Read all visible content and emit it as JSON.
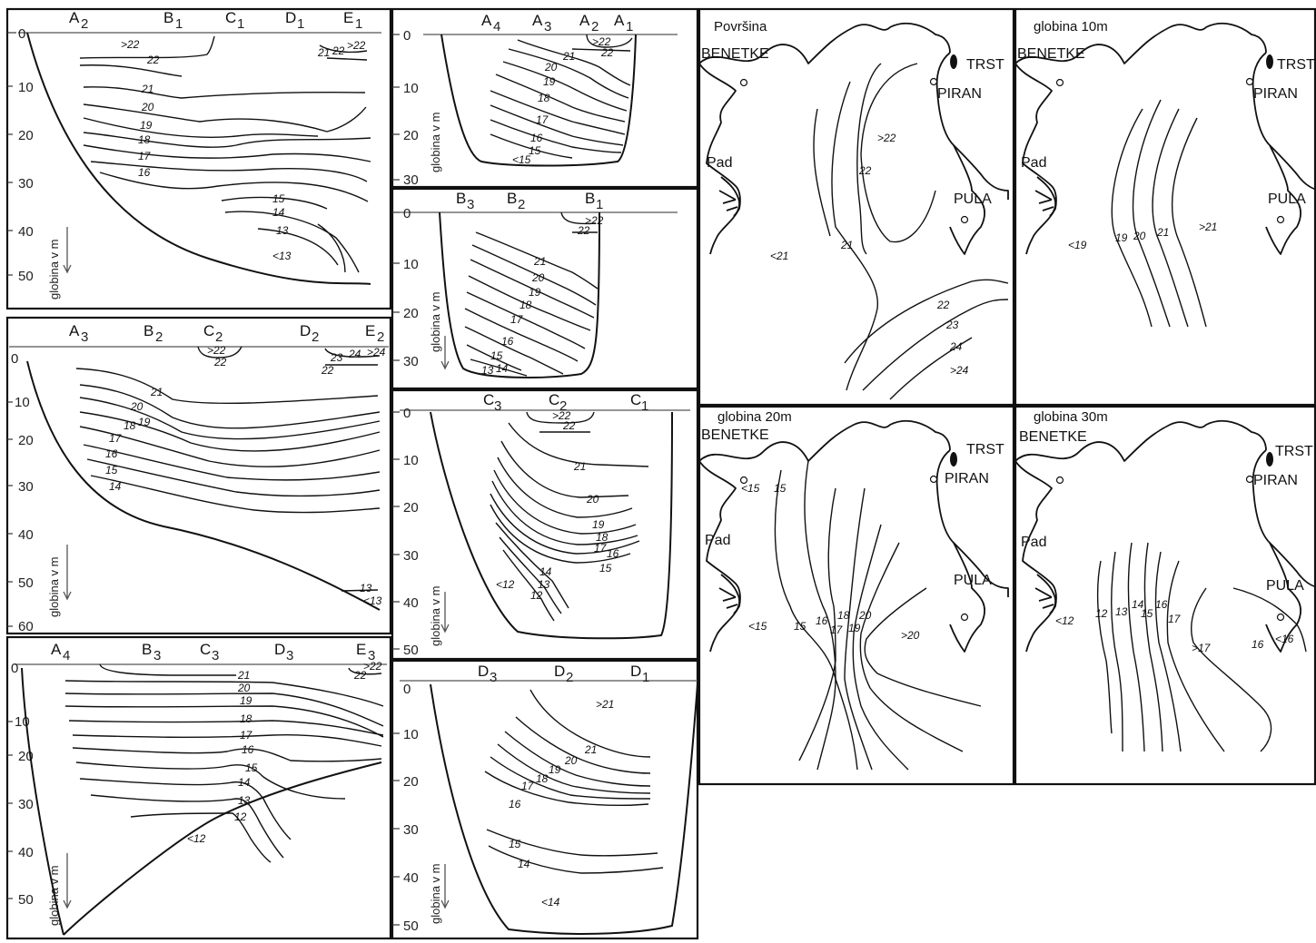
{
  "sections": {
    "s1": {
      "stations": [
        "A",
        "B",
        "C",
        "D",
        "E"
      ],
      "subs": [
        "2",
        "1",
        "1",
        "1",
        "1"
      ],
      "depths": [
        "0",
        "10",
        "20",
        "30",
        "40",
        "50"
      ],
      "ylabel": "globina v m",
      "labels": [
        ">22",
        "22",
        "21",
        "22",
        ">22",
        "21",
        "20",
        "19",
        "18",
        "17",
        "16",
        "15",
        "14",
        "13",
        "<13"
      ]
    },
    "s2": {
      "stations": [
        "A",
        "B",
        "C",
        "D",
        "E"
      ],
      "subs": [
        "3",
        "2",
        "2",
        "2",
        "2"
      ],
      "depths": [
        "0",
        "10",
        "20",
        "30",
        "40",
        "50",
        "60"
      ],
      "ylabel": "globina v m",
      "labels": [
        ">22",
        "22",
        "21",
        "20",
        "19",
        "18",
        "17",
        "16",
        "15",
        "14",
        "23",
        "24",
        ">24",
        "22",
        "13",
        "<13"
      ]
    },
    "s3": {
      "stations": [
        "A",
        "B",
        "C",
        "D",
        "E"
      ],
      "subs": [
        "4",
        "3",
        "3",
        "3",
        "3"
      ],
      "depths": [
        "0",
        "10",
        "20",
        "30",
        "40",
        "50"
      ],
      "ylabel": "globina v m",
      "labels": [
        "21",
        "20",
        "19",
        "18",
        "17",
        "16",
        "15",
        "14",
        "13",
        "12",
        "<12",
        ">22",
        "22"
      ]
    },
    "s4": {
      "stations": [
        "A",
        "A",
        "A",
        "A"
      ],
      "subs": [
        "4",
        "3",
        "2",
        "1"
      ],
      "depths": [
        "0",
        "10",
        "20",
        "30"
      ],
      "ylabel": "globina v m",
      "labels": [
        ">22",
        "22",
        "21",
        "20",
        "19",
        "18",
        "17",
        "16",
        "15",
        "<15"
      ]
    },
    "s5": {
      "stations": [
        "B",
        "B",
        "B"
      ],
      "subs": [
        "3",
        "2",
        "1"
      ],
      "depths": [
        "0",
        "10",
        "20",
        "30"
      ],
      "ylabel": "globina v m",
      "labels": [
        ">22",
        "22",
        "21",
        "20",
        "19",
        "18",
        "17",
        "16",
        "15",
        "13",
        "14"
      ]
    },
    "s6": {
      "stations": [
        "C",
        "C",
        "C"
      ],
      "subs": [
        "3",
        "2",
        "1"
      ],
      "depths": [
        "0",
        "10",
        "20",
        "30",
        "40",
        "50"
      ],
      "ylabel": "globina v m",
      "labels": [
        ">22",
        "22",
        "21",
        "20",
        "19",
        "18",
        "17",
        "16",
        "15",
        "14",
        "13",
        "12",
        "<12"
      ]
    },
    "s7": {
      "stations": [
        "D",
        "D",
        "D"
      ],
      "subs": [
        "3",
        "2",
        "1"
      ],
      "depths": [
        "0",
        "10",
        "20",
        "30",
        "40",
        "50"
      ],
      "ylabel": "globina v m",
      "labels": [
        ">21",
        "21",
        "20",
        "19",
        "18",
        "17",
        "16",
        "15",
        "14",
        "<14"
      ]
    }
  },
  "maps": {
    "surface": {
      "title": "Površina",
      "labels": [
        ">22",
        "22",
        "21",
        "<21",
        "22",
        "23",
        "24",
        ">24"
      ]
    },
    "d10": {
      "title": "globina 10m",
      "labels": [
        "<19",
        "19",
        "20",
        "21",
        ">21"
      ]
    },
    "d20": {
      "title": "globina 20m",
      "labels": [
        "<15",
        "15",
        "<15",
        "15",
        "16",
        "17",
        "18",
        "19",
        "20",
        ">20"
      ]
    },
    "d30": {
      "title": "globina 30m",
      "labels": [
        "<12",
        "12",
        "13",
        "14",
        "15",
        "16",
        "17",
        ">17",
        "16",
        "<16"
      ]
    },
    "cities": {
      "venice": "BENETKE",
      "trieste": "TRST",
      "piran": "PIRAN",
      "pula": "PULA",
      "po": "Pad"
    }
  }
}
